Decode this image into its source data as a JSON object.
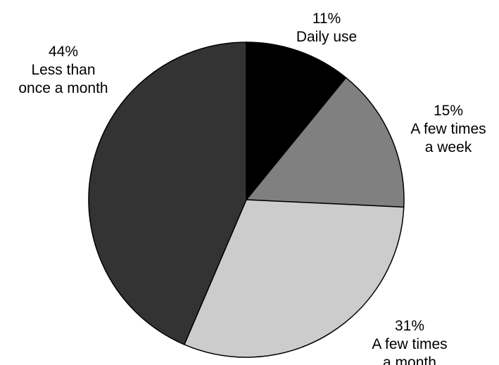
{
  "chart_data": {
    "type": "pie",
    "title": "",
    "start_angle_deg": 0,
    "direction": "clockwise",
    "slices": [
      {
        "label": "Daily use",
        "value": 11,
        "value_label": "11%",
        "label_lines": [
          "Daily use"
        ],
        "color": "#000000"
      },
      {
        "label": "A few times a week",
        "value": 15,
        "value_label": "15%",
        "label_lines": [
          "A few times",
          "a week"
        ],
        "color": "#808080"
      },
      {
        "label": "A few times a month",
        "value": 31,
        "value_label": "31%",
        "label_lines": [
          "A few times",
          "a month"
        ],
        "color": "#cccccc"
      },
      {
        "label": "Less than once a month",
        "value": 44,
        "value_label": "44%",
        "label_lines": [
          "Less than",
          "once a month"
        ],
        "color": "#333333"
      }
    ]
  }
}
